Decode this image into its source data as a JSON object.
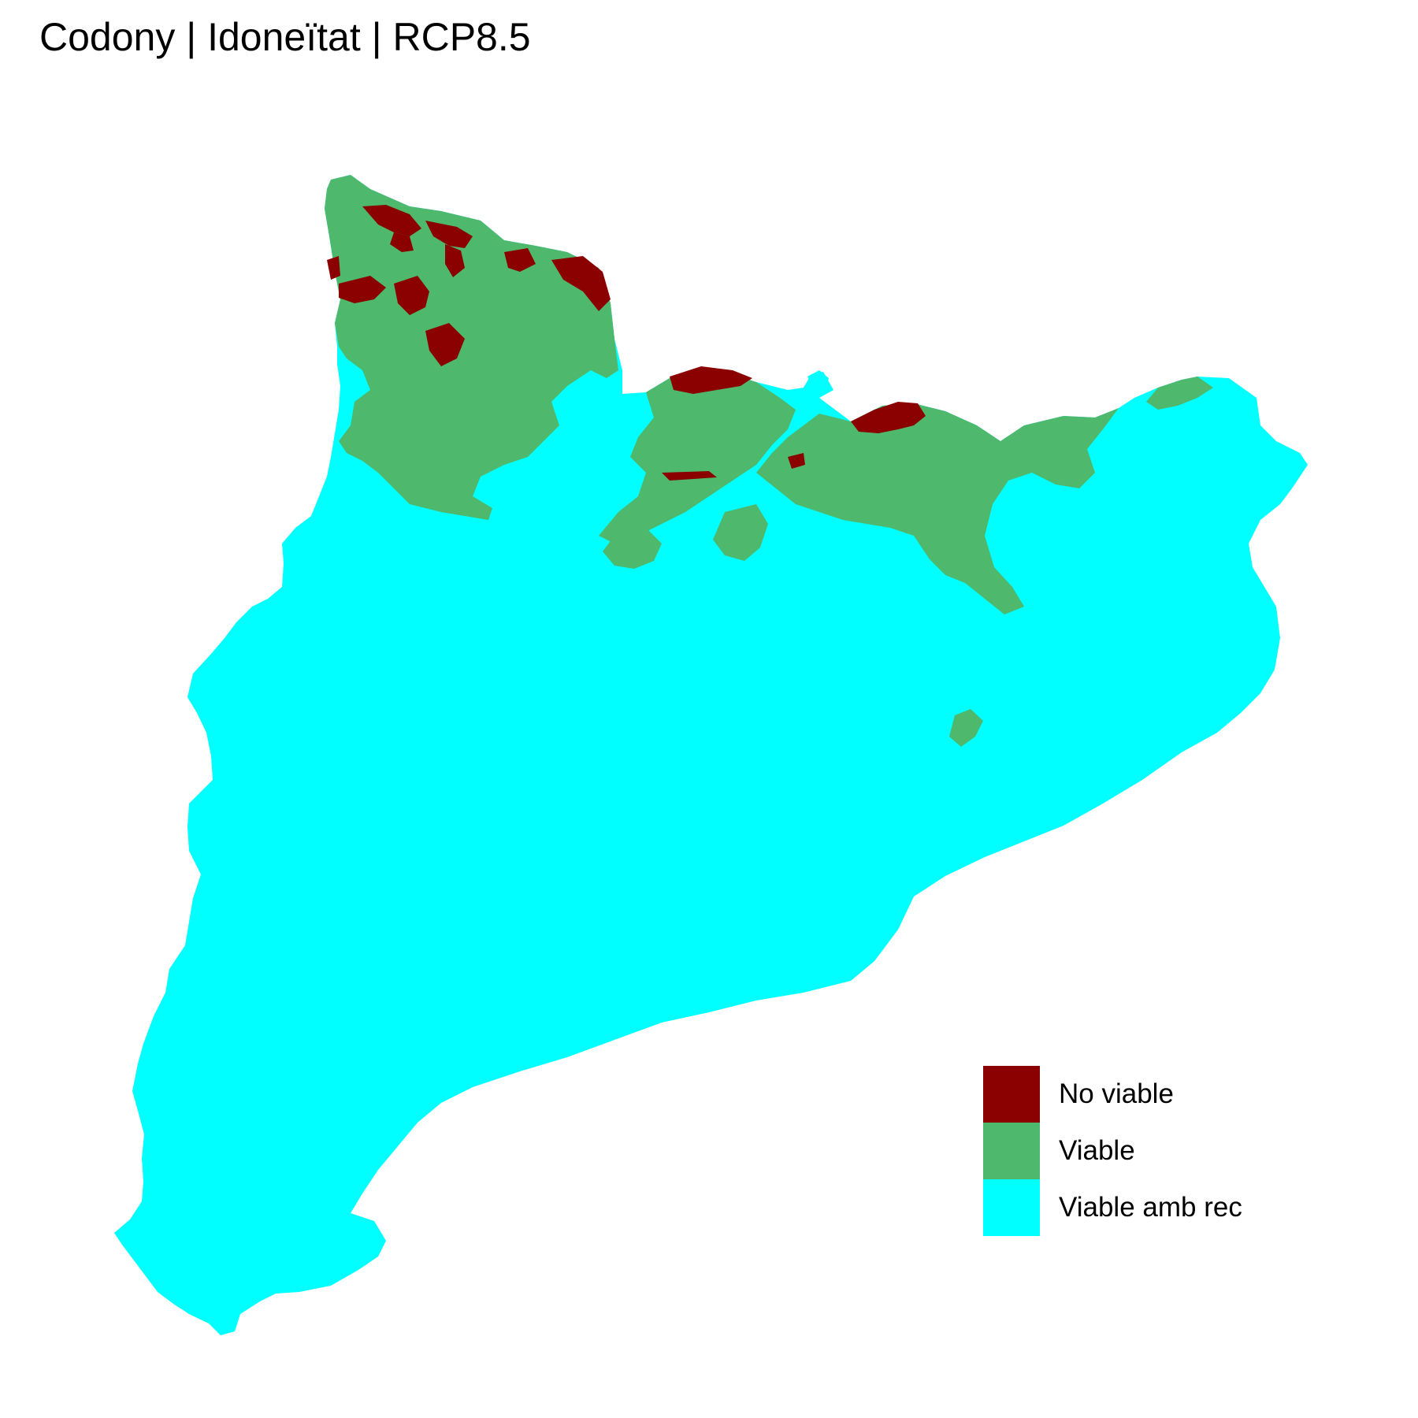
{
  "title": "Codony | Idoneïtat | RCP8.5",
  "colors": {
    "no_viable": "#8B0000",
    "viable": "#4EB86C",
    "viable_amb_rec": "#00FFFF"
  },
  "legend": [
    {
      "label": "No viable",
      "color": "#8B0000"
    },
    {
      "label": "Viable",
      "color": "#4EB86C"
    },
    {
      "label": "Viable amb rec",
      "color": "#00FFFF"
    }
  ]
}
